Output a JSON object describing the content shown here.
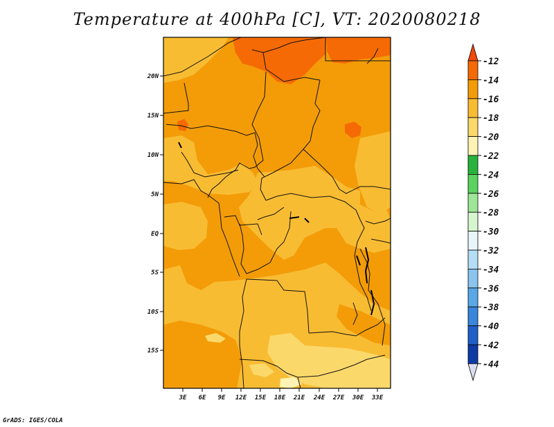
{
  "title": "Temperature at 400hPa [C], VT: 2020080218",
  "credit": "GrADS: IGES/COLA",
  "map": {
    "lat_labels": [
      "20N",
      "15N",
      "10N",
      "5N",
      "EQ",
      "5S",
      "10S",
      "15S"
    ],
    "lon_labels": [
      "3E",
      "6E",
      "9E",
      "12E",
      "15E",
      "18E",
      "21E",
      "24E",
      "27E",
      "30E",
      "33E"
    ]
  },
  "colorbar": {
    "labels": [
      "-12",
      "-14",
      "-16",
      "-18",
      "-20",
      "-22",
      "-24",
      "-26",
      "-28",
      "-30",
      "-32",
      "-34",
      "-36",
      "-38",
      "-40",
      "-42",
      "-44"
    ],
    "colors": [
      "#f04a0a",
      "#f56a05",
      "#f39c08",
      "#f8bc33",
      "#fbd86a",
      "#fef3b4",
      "#2ab33c",
      "#5ad35f",
      "#9ee697",
      "#d6f6d0",
      "#e8f6fb",
      "#b4def6",
      "#8ac4ef",
      "#5aa8e8",
      "#3a86da",
      "#1f5fc6",
      "#0e3aa3",
      "#0c1e78",
      "#dcdcf3"
    ]
  }
}
